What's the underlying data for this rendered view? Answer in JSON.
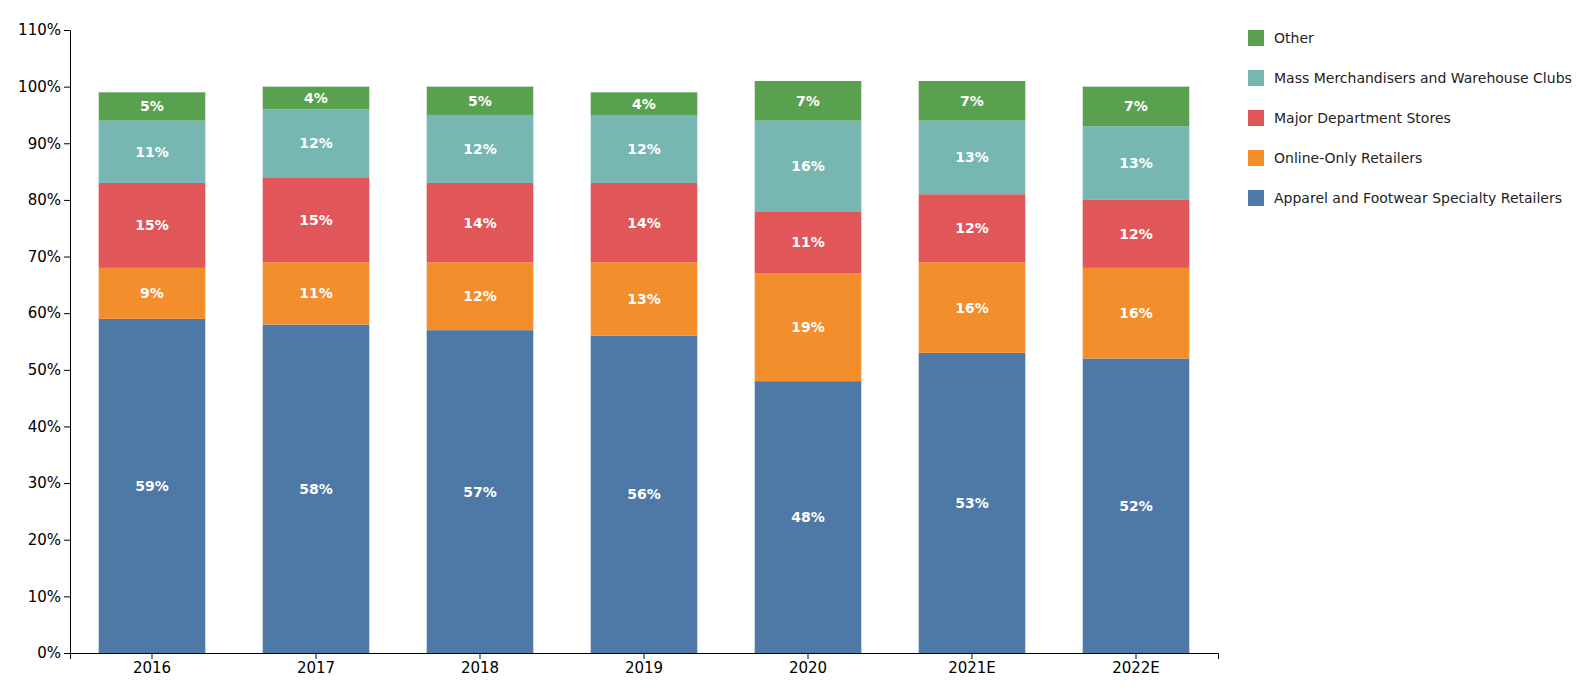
{
  "chart_data": {
    "type": "bar",
    "stacked": true,
    "categories": [
      "2016",
      "2017",
      "2018",
      "2019",
      "2020",
      "2021E",
      "2022E"
    ],
    "series": [
      {
        "name": "Apparel and Footwear Specialty Retailers",
        "values": [
          59,
          58,
          57,
          56,
          48,
          53,
          52
        ],
        "value_labels": [
          "59%",
          "58%",
          "57%",
          "56%",
          "48%",
          "53%",
          "52%"
        ]
      },
      {
        "name": "Online-Only Retailers",
        "values": [
          9,
          11,
          12,
          13,
          19,
          16,
          16
        ],
        "value_labels": [
          "9%",
          "11%",
          "12%",
          "13%",
          "19%",
          "16%",
          "16%"
        ]
      },
      {
        "name": "Major Department Stores",
        "values": [
          15,
          15,
          14,
          14,
          11,
          12,
          12
        ],
        "value_labels": [
          "15%",
          "15%",
          "14%",
          "14%",
          "11%",
          "12%",
          "12%"
        ]
      },
      {
        "name": "Mass Merchandisers and Warehouse Clubs",
        "values": [
          11,
          12,
          12,
          12,
          16,
          13,
          13
        ],
        "value_labels": [
          "11%",
          "12%",
          "12%",
          "12%",
          "16%",
          "13%",
          "13%"
        ]
      },
      {
        "name": "Other",
        "values": [
          5,
          4,
          5,
          4,
          7,
          7,
          7
        ],
        "value_labels": [
          "5%",
          "4%",
          "5%",
          "4%",
          "7%",
          "7%",
          "7%"
        ]
      }
    ],
    "ylim": [
      0,
      110
    ],
    "yticks": [
      {
        "value": 0,
        "label": "0%"
      },
      {
        "value": 10,
        "label": "10%"
      },
      {
        "value": 20,
        "label": "20%"
      },
      {
        "value": 30,
        "label": "30%"
      },
      {
        "value": 40,
        "label": "40%"
      },
      {
        "value": 50,
        "label": "50%"
      },
      {
        "value": 60,
        "label": "60%"
      },
      {
        "value": 70,
        "label": "70%"
      },
      {
        "value": 80,
        "label": "80%"
      },
      {
        "value": 90,
        "label": "90%"
      },
      {
        "value": 100,
        "label": "100%"
      },
      {
        "value": 110,
        "label": "110%"
      }
    ],
    "data_labels": true,
    "grid": false,
    "legend": "right"
  }
}
